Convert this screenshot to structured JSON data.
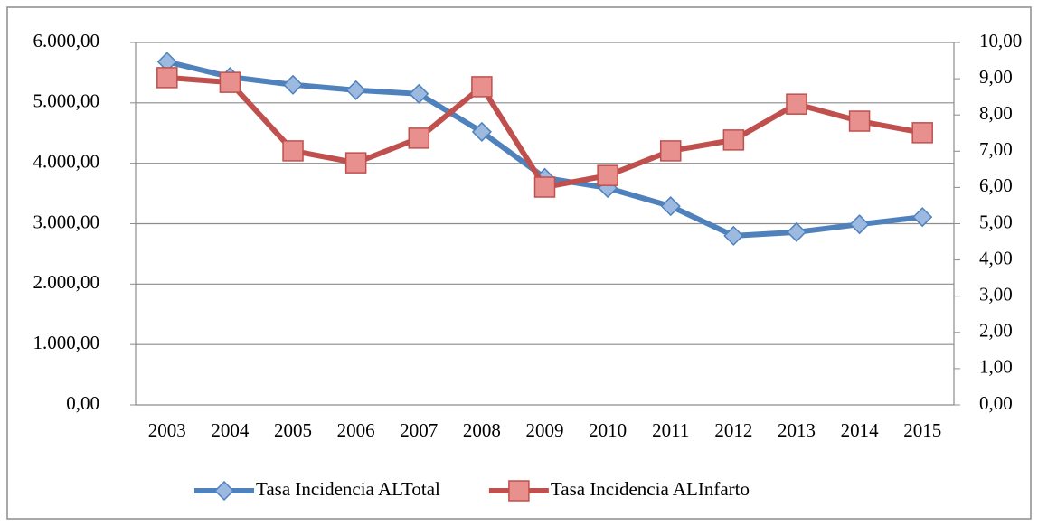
{
  "chart_data": {
    "type": "line",
    "categories": [
      "2003",
      "2004",
      "2005",
      "2006",
      "2007",
      "2008",
      "2009",
      "2010",
      "2011",
      "2012",
      "2013",
      "2014",
      "2015"
    ],
    "series": [
      {
        "name": "Tasa Incidencia ALTotal",
        "color": "#4f81bd",
        "marker": "diamond",
        "axis": "y",
        "values": [
          5680,
          5430,
          5300,
          5210,
          5150,
          4520,
          3760,
          3590,
          3290,
          2800,
          2860,
          2990,
          3110
        ]
      },
      {
        "name": "Tasa Incidencia ALInfarto",
        "color": "#c0504d",
        "marker": "square",
        "axis": "y2",
        "values": [
          9.03,
          8.9,
          7.01,
          6.68,
          7.36,
          8.78,
          6.01,
          6.33,
          7.01,
          7.31,
          8.3,
          7.83,
          7.51
        ]
      }
    ],
    "ylim": [
      0,
      6000
    ],
    "yticks": [
      {
        "value": 0,
        "label": "0,00"
      },
      {
        "value": 1000,
        "label": "1.000,00"
      },
      {
        "value": 2000,
        "label": "2.000,00"
      },
      {
        "value": 3000,
        "label": "3.000,00"
      },
      {
        "value": 4000,
        "label": "4.000,00"
      },
      {
        "value": 5000,
        "label": "5.000,00"
      },
      {
        "value": 6000,
        "label": "6.000,00"
      }
    ],
    "y2lim": [
      0,
      10
    ],
    "y2ticks": [
      {
        "value": 0,
        "label": "0,00"
      },
      {
        "value": 1,
        "label": "1,00"
      },
      {
        "value": 2,
        "label": "2,00"
      },
      {
        "value": 3,
        "label": "3,00"
      },
      {
        "value": 4,
        "label": "4,00"
      },
      {
        "value": 5,
        "label": "5,00"
      },
      {
        "value": 6,
        "label": "6,00"
      },
      {
        "value": 7,
        "label": "7,00"
      },
      {
        "value": 8,
        "label": "8,00"
      },
      {
        "value": 9,
        "label": "9,00"
      },
      {
        "value": 10,
        "label": "10,00"
      }
    ],
    "grid": true,
    "legend": "bottom"
  }
}
